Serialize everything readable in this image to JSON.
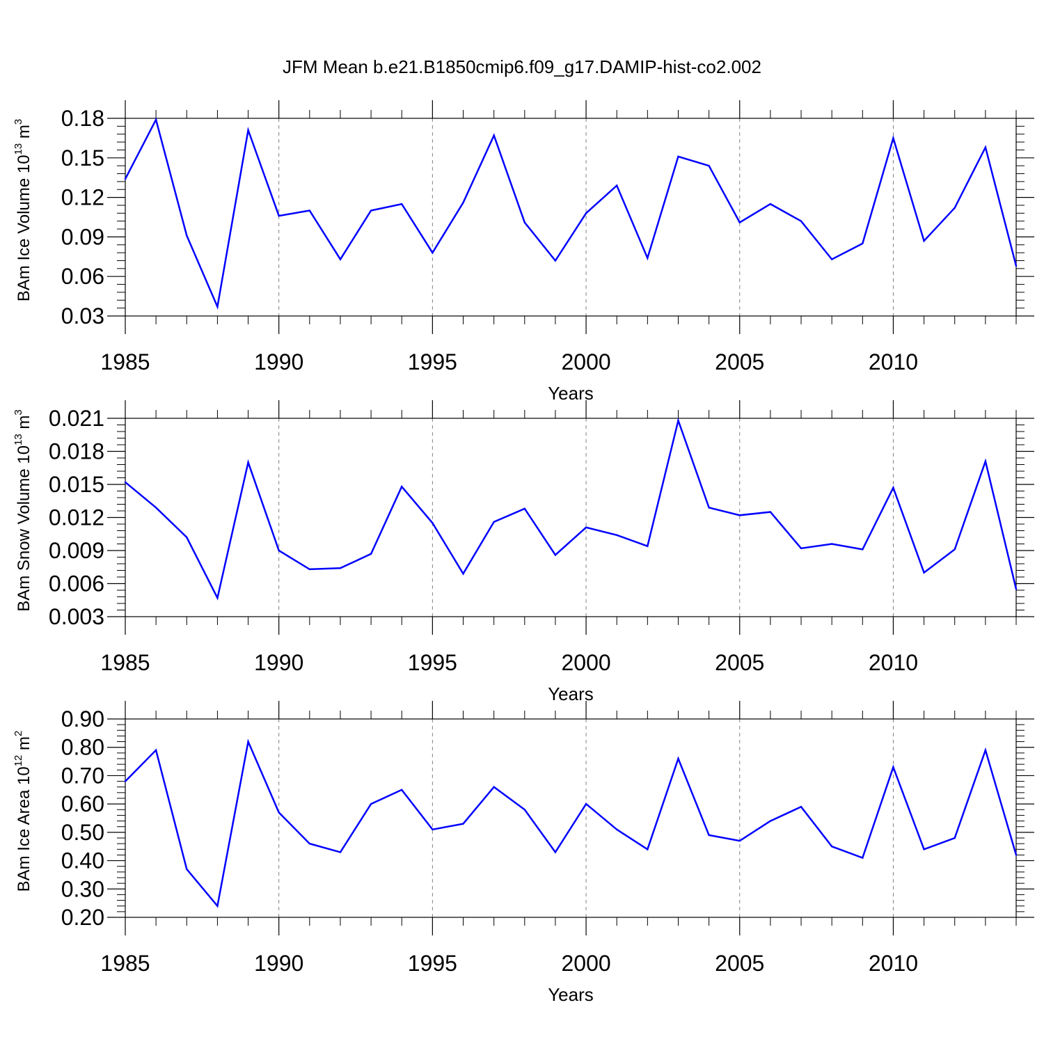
{
  "figure": {
    "title": "JFM Mean b.e21.B1850cmip6.f09_g17.DAMIP-hist-co2.002"
  },
  "style": {
    "line_color": "#0000ff",
    "axis_color": "#000000",
    "grid_color": "#808080",
    "background": "#ffffff"
  },
  "chart_data": [
    {
      "type": "line",
      "title": "JFM Mean b.e21.B1850cmip6.f09_g17.DAMIP-hist-co2.002",
      "ylabel": {
        "main": "BAm Ice Volume 10",
        "exp": "13",
        "unit": " m",
        "unit_exp": "3"
      },
      "xlabel": "Years",
      "xlim": [
        1985,
        2014
      ],
      "ylim": [
        0.03,
        0.18
      ],
      "xticks": [
        1985,
        1990,
        1995,
        2000,
        2005,
        2010
      ],
      "xtick_labels": [
        "1985",
        "1990",
        "1995",
        "2000",
        "2005",
        "2010"
      ],
      "yticks": [
        0.03,
        0.06,
        0.09,
        0.12,
        0.15,
        0.18
      ],
      "ytick_labels": [
        "0.03",
        "0.06",
        "0.09",
        "0.12",
        "0.15",
        "0.18"
      ],
      "grid_x": [
        1990,
        1995,
        2000,
        2005,
        2010
      ],
      "x": [
        1985,
        1986,
        1987,
        1988,
        1989,
        1990,
        1991,
        1992,
        1993,
        1994,
        1995,
        1996,
        1997,
        1998,
        1999,
        2000,
        2001,
        2002,
        2003,
        2004,
        2005,
        2006,
        2007,
        2008,
        2009,
        2010,
        2011,
        2012,
        2013,
        2014
      ],
      "values": [
        0.134,
        0.179,
        0.091,
        0.037,
        0.171,
        0.106,
        0.11,
        0.073,
        0.11,
        0.115,
        0.078,
        0.116,
        0.167,
        0.101,
        0.072,
        0.108,
        0.129,
        0.074,
        0.151,
        0.144,
        0.101,
        0.115,
        0.102,
        0.073,
        0.085,
        0.165,
        0.087,
        0.112,
        0.158,
        0.068
      ]
    },
    {
      "type": "line",
      "ylabel": {
        "main": "BAm Snow Volume 10",
        "exp": "13",
        "unit": " m",
        "unit_exp": "3"
      },
      "xlabel": "Years",
      "xlim": [
        1985,
        2014
      ],
      "ylim": [
        0.003,
        0.021
      ],
      "xticks": [
        1985,
        1990,
        1995,
        2000,
        2005,
        2010
      ],
      "xtick_labels": [
        "1985",
        "1990",
        "1995",
        "2000",
        "2005",
        "2010"
      ],
      "yticks": [
        0.003,
        0.006,
        0.009,
        0.012,
        0.015,
        0.018,
        0.021
      ],
      "ytick_labels": [
        "0.003",
        "0.006",
        "0.009",
        "0.012",
        "0.015",
        "0.018",
        "0.021"
      ],
      "grid_x": [
        1990,
        1995,
        2000,
        2005,
        2010
      ],
      "x": [
        1985,
        1986,
        1987,
        1988,
        1989,
        1990,
        1991,
        1992,
        1993,
        1994,
        1995,
        1996,
        1997,
        1998,
        1999,
        2000,
        2001,
        2002,
        2003,
        2004,
        2005,
        2006,
        2007,
        2008,
        2009,
        2010,
        2011,
        2012,
        2013,
        2014
      ],
      "values": [
        0.0152,
        0.0129,
        0.0102,
        0.0047,
        0.017,
        0.009,
        0.0073,
        0.0074,
        0.0087,
        0.0148,
        0.0115,
        0.0069,
        0.0116,
        0.0128,
        0.0086,
        0.0111,
        0.0104,
        0.0094,
        0.0208,
        0.0129,
        0.0122,
        0.0125,
        0.0092,
        0.0096,
        0.0091,
        0.0147,
        0.007,
        0.0091,
        0.0171,
        0.0055
      ]
    },
    {
      "type": "line",
      "ylabel": {
        "main": "BAm Ice Area 10",
        "exp": "12",
        "unit": " m",
        "unit_exp": "2"
      },
      "xlabel": "Years",
      "xlim": [
        1985,
        2014
      ],
      "ylim": [
        0.2,
        0.9
      ],
      "xticks": [
        1985,
        1990,
        1995,
        2000,
        2005,
        2010
      ],
      "xtick_labels": [
        "1985",
        "1990",
        "1995",
        "2000",
        "2005",
        "2010"
      ],
      "yticks": [
        0.2,
        0.3,
        0.4,
        0.5,
        0.6,
        0.7,
        0.8,
        0.9
      ],
      "ytick_labels": [
        "0.20",
        "0.30",
        "0.40",
        "0.50",
        "0.60",
        "0.70",
        "0.80",
        "0.90"
      ],
      "grid_x": [
        1990,
        1995,
        2000,
        2005,
        2010
      ],
      "x": [
        1985,
        1986,
        1987,
        1988,
        1989,
        1990,
        1991,
        1992,
        1993,
        1994,
        1995,
        1996,
        1997,
        1998,
        1999,
        2000,
        2001,
        2002,
        2003,
        2004,
        2005,
        2006,
        2007,
        2008,
        2009,
        2010,
        2011,
        2012,
        2013,
        2014
      ],
      "values": [
        0.68,
        0.79,
        0.37,
        0.24,
        0.82,
        0.57,
        0.46,
        0.43,
        0.6,
        0.65,
        0.51,
        0.53,
        0.66,
        0.58,
        0.43,
        0.6,
        0.51,
        0.44,
        0.76,
        0.49,
        0.47,
        0.54,
        0.59,
        0.45,
        0.41,
        0.73,
        0.44,
        0.48,
        0.79,
        0.42
      ]
    }
  ]
}
